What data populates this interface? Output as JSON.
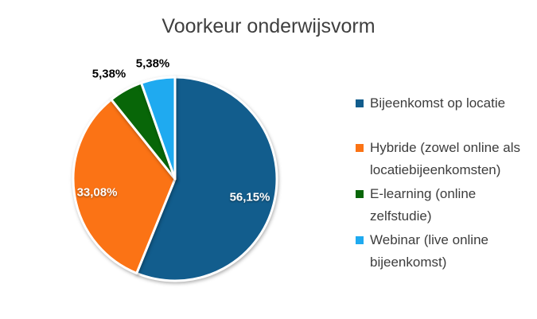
{
  "chart_data": {
    "type": "pie",
    "title": "Voorkeur onderwijsvorm",
    "categories": [
      "Bijeenkomst op locatie",
      "Hybride (zowel online als locatiebijeenkomsten)",
      "E-learning (online zelfstudie)",
      "Webinar (live online bijeenkomst)"
    ],
    "values": [
      56.15,
      33.08,
      5.38,
      5.38
    ],
    "value_labels": [
      "56,15%",
      "33,08%",
      "5,38%",
      "5,38%"
    ],
    "colors": [
      "#125D8D",
      "#FB7315",
      "#086608",
      "#1FAAF0"
    ],
    "start_angle_deg": 0,
    "direction": "clockwise",
    "legend_position": "right",
    "label_placement": [
      "inside",
      "inside",
      "outside",
      "outside"
    ],
    "title_color": "#3F3F3F",
    "slice_border_color": "#FFFFFF",
    "legend": [
      {
        "label": "Bijeenkomst op locatie",
        "color": "#125D8D"
      },
      {
        "label": "Hybride (zowel online als locatiebijeenkomsten)",
        "color": "#FB7315"
      },
      {
        "label": "E-learning (online zelfstudie)",
        "color": "#086608"
      },
      {
        "label": "Webinar (live online bijeenkomst)",
        "color": "#1FAAF0"
      }
    ]
  }
}
